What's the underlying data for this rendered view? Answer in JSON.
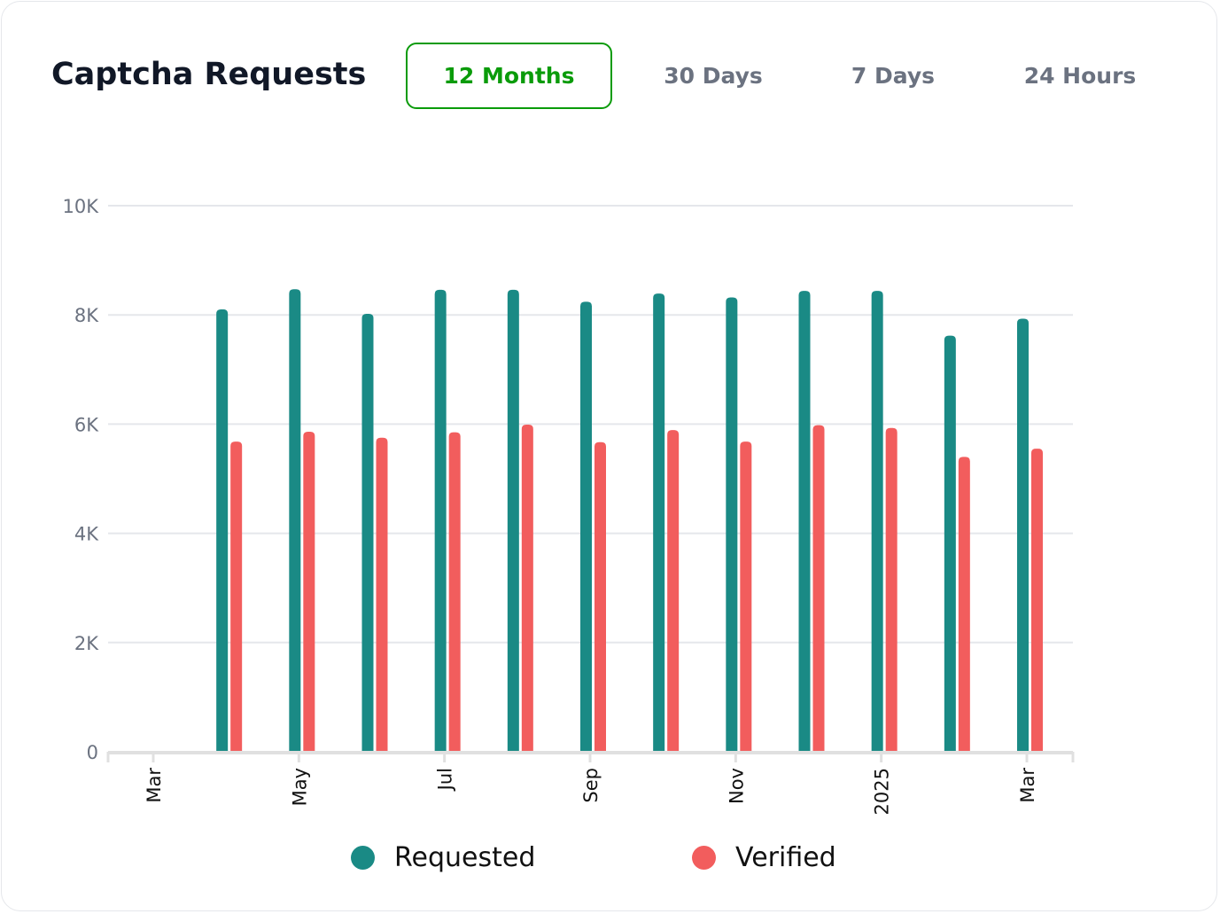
{
  "header": {
    "title": "Captcha Requests"
  },
  "tabs": [
    {
      "label": "12 Months",
      "active": true
    },
    {
      "label": "30 Days",
      "active": false
    },
    {
      "label": "7 Days",
      "active": false
    },
    {
      "label": "24 Hours",
      "active": false
    }
  ],
  "colors": {
    "requested": "#1a8a85",
    "verified": "#f25d5d",
    "accent": "#0a9b0a"
  },
  "chart_data": {
    "type": "bar",
    "categories": [
      "2024-04",
      "2024-05",
      "2024-06",
      "2024-07",
      "2024-08",
      "2024-09",
      "2024-10",
      "2024-11",
      "2024-12",
      "2025-01",
      "2025-02",
      "2025-03"
    ],
    "x_range": [
      "2024-03",
      "2025-03"
    ],
    "x_ticks": [
      {
        "month": "2024-03",
        "label": "Mar"
      },
      {
        "month": "2024-05",
        "label": "May"
      },
      {
        "month": "2024-07",
        "label": "Jul"
      },
      {
        "month": "2024-09",
        "label": "Sep"
      },
      {
        "month": "2024-11",
        "label": "Nov"
      },
      {
        "month": "2025-01",
        "label": "2025"
      },
      {
        "month": "2025-03",
        "label": "Mar"
      }
    ],
    "y_ticks": [
      {
        "value": 0,
        "label": "0"
      },
      {
        "value": 2000,
        "label": "2K"
      },
      {
        "value": 4000,
        "label": "4K"
      },
      {
        "value": 6000,
        "label": "6K"
      },
      {
        "value": 8000,
        "label": "8K"
      },
      {
        "value": 10000,
        "label": "10K"
      }
    ],
    "ylim": [
      0,
      10000
    ],
    "grid": true,
    "legend_position": "bottom",
    "series": [
      {
        "name": "Requested",
        "color": "#1a8a85",
        "values": [
          8100,
          8470,
          8020,
          8460,
          8460,
          8240,
          8390,
          8320,
          8440,
          8440,
          7620,
          7930
        ]
      },
      {
        "name": "Verified",
        "color": "#f25d5d",
        "values": [
          5680,
          5860,
          5750,
          5850,
          5990,
          5670,
          5890,
          5680,
          5980,
          5930,
          5400,
          5550
        ]
      }
    ]
  }
}
